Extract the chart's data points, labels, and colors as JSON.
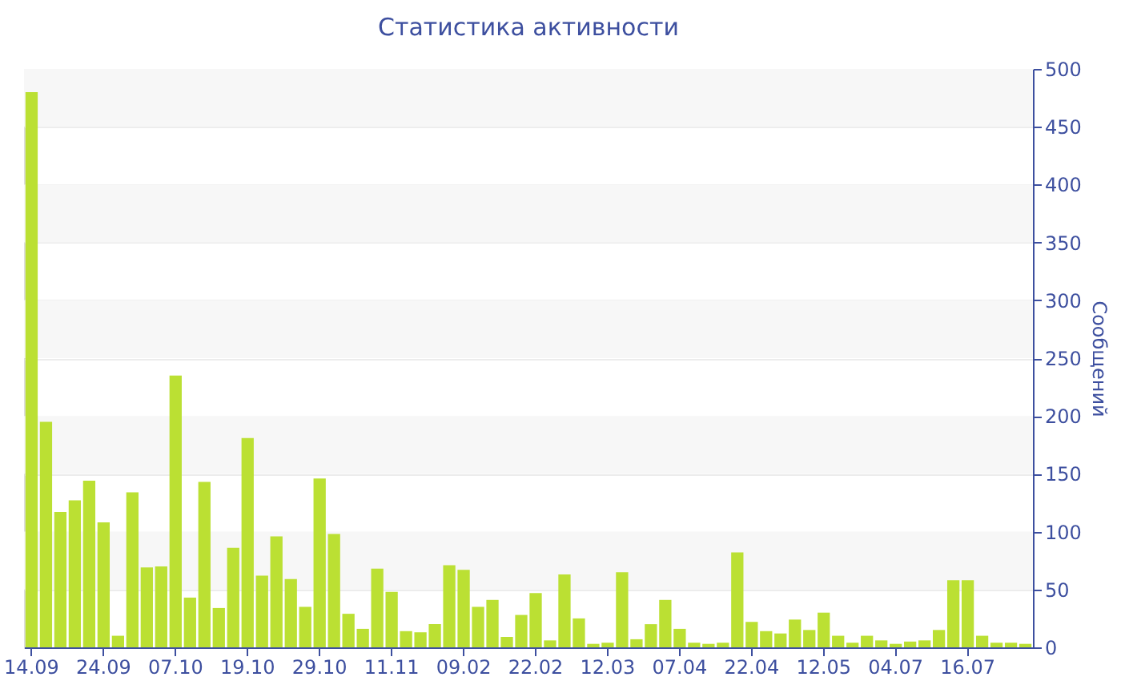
{
  "chart_data": {
    "type": "bar",
    "title": "Статистика активности",
    "ylabel": "Сообщений",
    "categories": [
      "14.09",
      null,
      null,
      null,
      null,
      "24.09",
      null,
      null,
      null,
      null,
      "07.10",
      null,
      null,
      null,
      null,
      "19.10",
      null,
      null,
      null,
      null,
      "29.10",
      null,
      null,
      null,
      null,
      "11.11",
      null,
      null,
      null,
      null,
      "09.02",
      null,
      null,
      null,
      null,
      "22.02",
      null,
      null,
      null,
      null,
      "12.03",
      null,
      null,
      null,
      null,
      "07.04",
      null,
      null,
      null,
      null,
      "22.04",
      null,
      null,
      null,
      null,
      "12.05",
      null,
      null,
      null,
      null,
      "04.07",
      null,
      null,
      null,
      null,
      "16.07",
      null,
      null,
      null,
      null
    ],
    "values": [
      480,
      195,
      117,
      127,
      144,
      108,
      10,
      134,
      69,
      70,
      235,
      43,
      143,
      34,
      86,
      181,
      62,
      96,
      59,
      35,
      146,
      98,
      29,
      16,
      68,
      48,
      14,
      13,
      20,
      71,
      67,
      35,
      41,
      9,
      28,
      47,
      6,
      63,
      25,
      3,
      4,
      65,
      7,
      20,
      41,
      16,
      4,
      3,
      4,
      82,
      22,
      14,
      12,
      24,
      15,
      30,
      10,
      4,
      10,
      6,
      3,
      5,
      6,
      15,
      58,
      58,
      10,
      4,
      4,
      3
    ],
    "color": "#bbe033",
    "ylim": [
      0,
      500
    ],
    "yticks": [
      0,
      50,
      100,
      150,
      200,
      250,
      300,
      350,
      400,
      450,
      500
    ],
    "grid": "y"
  }
}
